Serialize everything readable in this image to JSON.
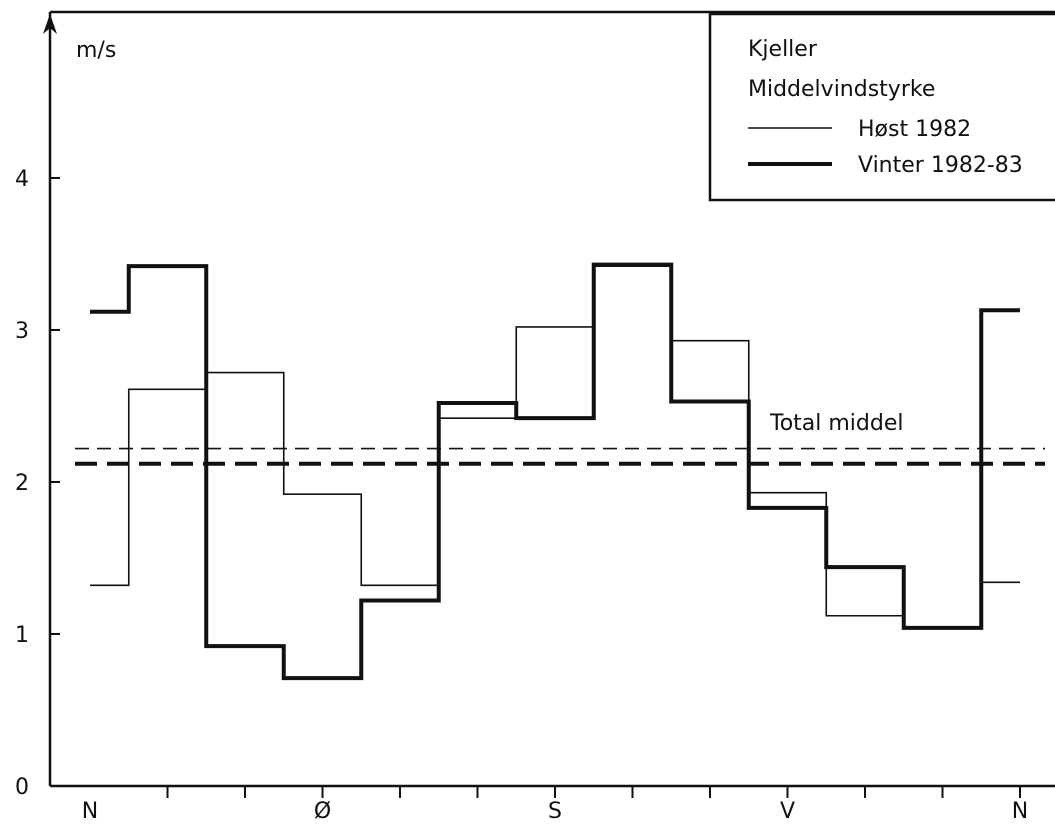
{
  "chart_data": {
    "type": "line",
    "step": true,
    "ylabel": "m/s",
    "ylim": [
      0,
      4.5
    ],
    "y_ticks": [
      0,
      1,
      2,
      3,
      4
    ],
    "y_tick_labels": [
      "0",
      "1",
      "2",
      "3",
      "4"
    ],
    "x_tick_labels": [
      "N",
      "Ø",
      "S",
      "V",
      "N"
    ],
    "legend": {
      "position": "top-right",
      "title": "Kjeller",
      "subtitle": "Middelvindstyrke"
    },
    "annotation": "Total middel",
    "series": [
      {
        "name": "Høst 1982",
        "style": "thin",
        "values": [
          1.32,
          2.61,
          2.72,
          1.92,
          1.32,
          2.42,
          3.02,
          3.42,
          2.93,
          1.93,
          1.12,
          1.04,
          1.34
        ],
        "mean": 2.22
      },
      {
        "name": "Vinter 1982-83",
        "style": "thick",
        "values": [
          3.12,
          3.42,
          0.92,
          0.71,
          1.22,
          2.52,
          2.42,
          3.43,
          2.53,
          1.83,
          1.44,
          1.04,
          3.13
        ],
        "mean": 2.12
      }
    ],
    "grid": false,
    "colors": {
      "line": "#111111",
      "background": "#ffffff"
    }
  }
}
